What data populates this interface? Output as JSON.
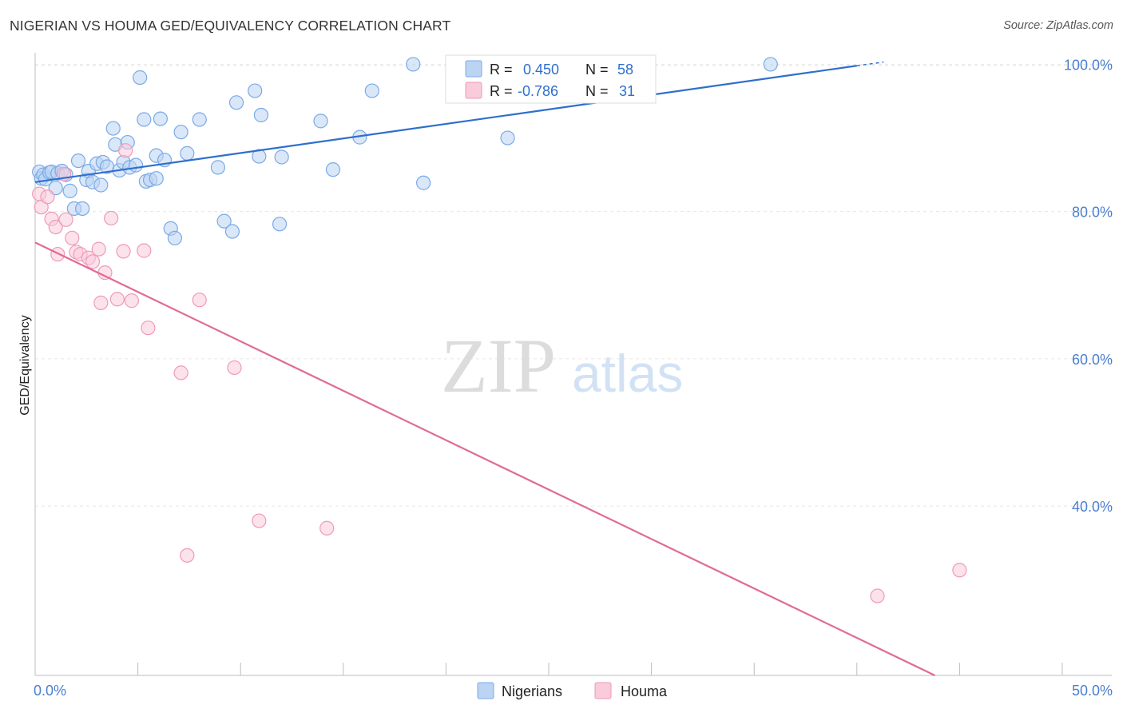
{
  "title": "NIGERIAN VS HOUMA GED/EQUIVALENCY CORRELATION CHART",
  "source": "Source: ZipAtlas.com",
  "watermark": {
    "zip": "ZIP",
    "atlas": "atlas"
  },
  "colors": {
    "blue": "#7aaae6",
    "blue_fill": "#bcd4f3",
    "blue_line": "#2f6fcc",
    "pink": "#ef9ab8",
    "pink_fill": "#f9cbdb",
    "pink_line": "#e06b97",
    "tick_text": "#4a7fd0",
    "grid": "#e6e6e6"
  },
  "legend_top": {
    "rows": [
      {
        "r_label": "R =",
        "r_value": "0.450",
        "n_label": "N =",
        "n_value": "58"
      },
      {
        "r_label": "R =",
        "r_value": "-0.786",
        "n_label": "N =",
        "n_value": "31"
      }
    ]
  },
  "legend_bottom": [
    "Nigerians",
    "Houma"
  ],
  "chart_data": {
    "type": "scatter",
    "title": "NIGERIAN VS HOUMA GED/EQUIVALENCY CORRELATION CHART",
    "xlabel": "",
    "ylabel": "GED/Equivalency",
    "xlim": [
      0,
      50
    ],
    "ylim": [
      17,
      102
    ],
    "x_tick_labels": [
      "0.0%",
      "50.0%"
    ],
    "y_ticks": [
      40,
      60,
      80,
      100
    ],
    "y_tick_labels": [
      "40.0%",
      "60.0%",
      "80.0%",
      "100.0%"
    ],
    "grid": true,
    "legend_position": "top-center",
    "series": [
      {
        "name": "Nigerians",
        "r": 0.45,
        "n": 58,
        "trendline": {
          "x": [
            0,
            40
          ],
          "y": [
            84.0,
            99.8
          ]
        },
        "points": [
          [
            0.2,
            85.4
          ],
          [
            0.3,
            84.5
          ],
          [
            0.4,
            85.0
          ],
          [
            0.5,
            84.4
          ],
          [
            0.7,
            85.3
          ],
          [
            0.8,
            85.4
          ],
          [
            1.0,
            83.2
          ],
          [
            1.1,
            85.2
          ],
          [
            1.3,
            85.5
          ],
          [
            1.5,
            85.0
          ],
          [
            1.7,
            82.8
          ],
          [
            1.9,
            80.4
          ],
          [
            2.1,
            86.9
          ],
          [
            2.3,
            80.4
          ],
          [
            2.5,
            84.3
          ],
          [
            2.6,
            85.5
          ],
          [
            2.8,
            84.0
          ],
          [
            3.0,
            86.5
          ],
          [
            3.2,
            83.6
          ],
          [
            3.3,
            86.7
          ],
          [
            3.5,
            86.1
          ],
          [
            3.8,
            91.3
          ],
          [
            3.9,
            89.1
          ],
          [
            4.1,
            85.6
          ],
          [
            4.3,
            86.7
          ],
          [
            4.5,
            89.4
          ],
          [
            4.6,
            86.0
          ],
          [
            4.9,
            86.3
          ],
          [
            5.1,
            98.2
          ],
          [
            5.3,
            92.5
          ],
          [
            5.4,
            84.1
          ],
          [
            5.6,
            84.3
          ],
          [
            5.9,
            84.5
          ],
          [
            5.9,
            87.6
          ],
          [
            6.1,
            92.6
          ],
          [
            6.3,
            87.0
          ],
          [
            6.6,
            77.7
          ],
          [
            6.8,
            76.4
          ],
          [
            7.1,
            90.8
          ],
          [
            7.4,
            87.9
          ],
          [
            8.0,
            92.5
          ],
          [
            8.9,
            86.0
          ],
          [
            9.2,
            78.7
          ],
          [
            9.6,
            77.3
          ],
          [
            9.8,
            94.8
          ],
          [
            10.7,
            96.4
          ],
          [
            10.9,
            87.5
          ],
          [
            11.0,
            93.1
          ],
          [
            11.9,
            78.3
          ],
          [
            12.0,
            87.4
          ],
          [
            13.9,
            92.3
          ],
          [
            14.5,
            85.7
          ],
          [
            15.8,
            90.1
          ],
          [
            16.4,
            96.4
          ],
          [
            18.4,
            100.0
          ],
          [
            18.9,
            83.9
          ],
          [
            23.0,
            90.0
          ],
          [
            35.8,
            100.0
          ]
        ]
      },
      {
        "name": "Houma",
        "r": -0.786,
        "n": 31,
        "trendline": {
          "x": [
            0,
            43.8
          ],
          "y": [
            75.8,
            17.0
          ]
        },
        "points": [
          [
            0.2,
            82.4
          ],
          [
            0.3,
            80.6
          ],
          [
            0.6,
            82.0
          ],
          [
            0.8,
            79.0
          ],
          [
            1.0,
            77.9
          ],
          [
            1.1,
            74.2
          ],
          [
            1.4,
            85.1
          ],
          [
            1.5,
            78.9
          ],
          [
            1.8,
            76.4
          ],
          [
            2.0,
            74.5
          ],
          [
            2.2,
            74.2
          ],
          [
            2.6,
            73.7
          ],
          [
            2.8,
            73.2
          ],
          [
            3.1,
            74.9
          ],
          [
            3.2,
            67.6
          ],
          [
            3.4,
            71.7
          ],
          [
            3.7,
            79.1
          ],
          [
            4.0,
            68.1
          ],
          [
            4.3,
            74.6
          ],
          [
            4.4,
            88.3
          ],
          [
            4.7,
            67.9
          ],
          [
            5.3,
            74.7
          ],
          [
            5.5,
            64.2
          ],
          [
            7.1,
            58.1
          ],
          [
            7.4,
            33.3
          ],
          [
            8.0,
            68.0
          ],
          [
            9.7,
            58.8
          ],
          [
            10.9,
            38.0
          ],
          [
            14.2,
            37.0
          ],
          [
            41.0,
            27.8
          ],
          [
            45.0,
            31.3
          ]
        ]
      }
    ]
  }
}
